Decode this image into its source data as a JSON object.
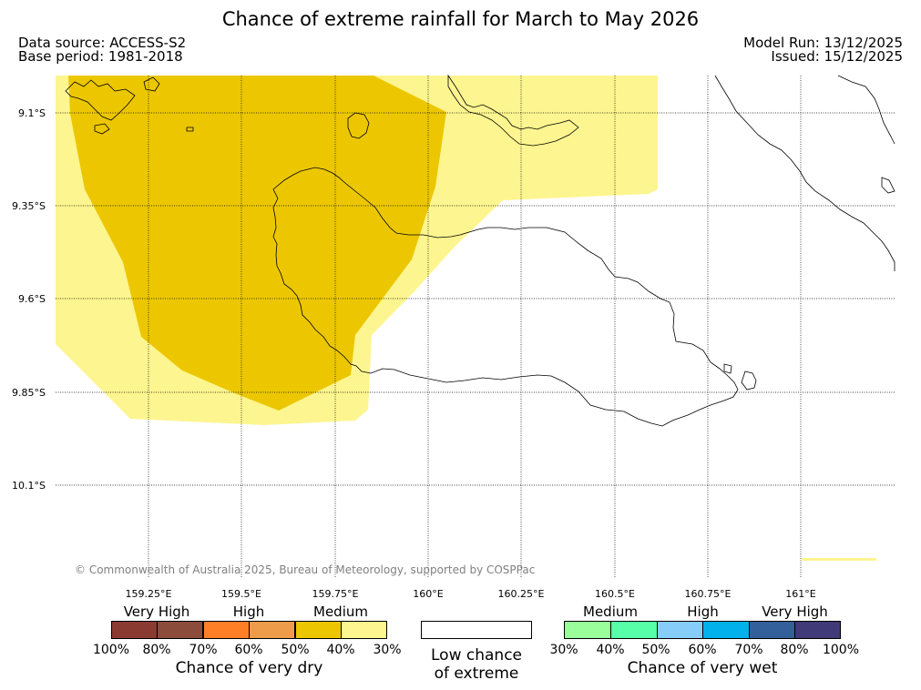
{
  "title": "Chance of extreme rainfall for March to May 2026",
  "data_source": "Data source: ACCESS-S2",
  "base_period": "Base period: 1981-2018",
  "model_run": "Model Run: 13/12/2025",
  "issued": "Issued: 15/12/2025",
  "latitudes": [
    "9.1°S",
    "9.35°S",
    "9.6°S",
    "9.85°S",
    "10.1°S"
  ],
  "longitudes": [
    "159.25°E",
    "159.5°E",
    "159.75°E",
    "160°E",
    "160.25°E",
    "160.5°E",
    "160.75°E",
    "161°E"
  ],
  "copyright": "© Commonwealth of Australia 2025, Bureau of Meteorology, supported by COSPPac",
  "legend": {
    "dry": {
      "categories": [
        "Very High",
        "High",
        "Medium"
      ],
      "colors": [
        "#8b3a32",
        "#8b4c3c",
        "#ff7f27",
        "#ee9b4a",
        "#ecc700",
        "#fdf58f"
      ],
      "ticks": [
        "100%",
        "80%",
        "70%",
        "60%",
        "50%",
        "40%",
        "30%"
      ],
      "caption": "Chance of very dry"
    },
    "low": {
      "caption_line1": "Low chance",
      "caption_line2": "of extreme"
    },
    "wet": {
      "categories": [
        "Medium",
        "High",
        "Very High"
      ],
      "colors": [
        "#9aff9a",
        "#57ffa8",
        "#87cdfa",
        "#00b1ec",
        "#335f9a",
        "#403a78"
      ],
      "ticks": [
        "30%",
        "40%",
        "50%",
        "60%",
        "70%",
        "80%",
        "100%"
      ],
      "caption": "Chance of very wet"
    }
  },
  "map_colors": {
    "medium_dry": "#ecc700",
    "low_dry": "#fdf58f"
  }
}
